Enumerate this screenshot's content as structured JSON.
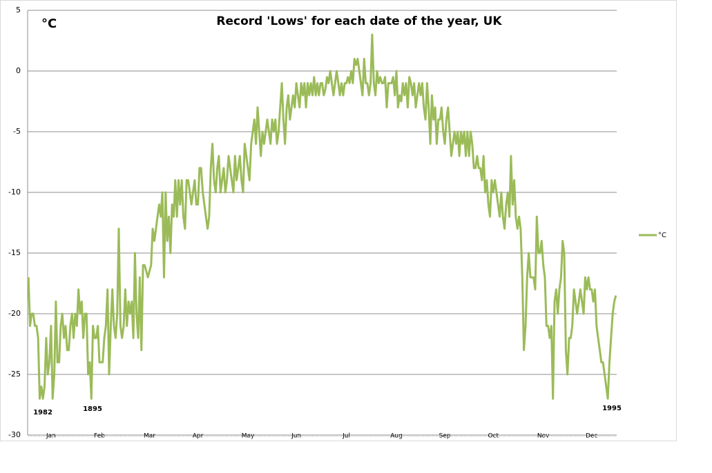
{
  "chart_data": {
    "type": "line",
    "title": "Record 'Lows' for each date of the year, UK",
    "unit_label": "°C",
    "annotations": [
      "1982",
      "1895",
      "1995"
    ],
    "ylim": [
      -30,
      5
    ],
    "yticks": [
      5,
      0,
      -5,
      -10,
      -15,
      -20,
      -25,
      -30
    ],
    "grid": true,
    "legend": "right",
    "categories": [
      null,
      null,
      null,
      null,
      null,
      null,
      null,
      null,
      null,
      null,
      null,
      null,
      null,
      null,
      "Jan",
      null,
      null,
      null,
      null,
      null,
      null,
      null,
      null,
      null,
      null,
      null,
      null,
      null,
      null,
      null,
      null,
      null,
      null,
      null,
      null,
      null,
      null,
      null,
      null,
      null,
      null,
      null,
      null,
      null,
      "Feb",
      null,
      null,
      null,
      null,
      null,
      null,
      null,
      null,
      null,
      null,
      null,
      null,
      null,
      null,
      null,
      null,
      null,
      null,
      null,
      null,
      null,
      null,
      null,
      null,
      null,
      null,
      null,
      null,
      null,
      null,
      "Mar",
      null,
      null,
      null,
      null,
      null,
      null,
      null,
      null,
      null,
      null,
      null,
      null,
      null,
      null,
      null,
      null,
      null,
      null,
      null,
      null,
      null,
      null,
      null,
      null,
      null,
      null,
      null,
      null,
      null,
      "Apr",
      null,
      null,
      null,
      null,
      null,
      null,
      null,
      null,
      null,
      null,
      null,
      null,
      null,
      null,
      null,
      null,
      null,
      null,
      null,
      null,
      null,
      null,
      null,
      null,
      null,
      null,
      null,
      null,
      null,
      null,
      "May",
      null,
      null,
      null,
      null,
      null,
      null,
      null,
      null,
      null,
      null,
      null,
      null,
      null,
      null,
      null,
      null,
      null,
      null,
      null,
      null,
      null,
      null,
      null,
      null,
      null,
      null,
      null,
      null,
      null,
      "Jun",
      null,
      null,
      null,
      null,
      null,
      null,
      null,
      null,
      null,
      null,
      null,
      null,
      null,
      null,
      null,
      null,
      null,
      null,
      null,
      null,
      null,
      null,
      null,
      null,
      null,
      null,
      null,
      null,
      null,
      null,
      "Jul",
      null,
      null,
      null,
      null,
      null,
      null,
      null,
      null,
      null,
      null,
      null,
      null,
      null,
      null,
      null,
      null,
      null,
      null,
      null,
      null,
      null,
      null,
      null,
      null,
      null,
      null,
      null,
      null,
      null,
      null,
      "Aug",
      null,
      null,
      null,
      null,
      null,
      null,
      null,
      null,
      null,
      null,
      null,
      null,
      null,
      null,
      null,
      null,
      null,
      null,
      null,
      null,
      null,
      null,
      null,
      null,
      null,
      null,
      null,
      null,
      null,
      "Sep",
      null,
      null,
      null,
      null,
      null,
      null,
      null,
      null,
      null,
      null,
      null,
      null,
      null,
      null,
      null,
      null,
      null,
      null,
      null,
      null,
      null,
      null,
      null,
      null,
      null,
      null,
      null,
      null,
      null,
      "Oct",
      null,
      null,
      null,
      null,
      null,
      null,
      null,
      null,
      null,
      null,
      null,
      null,
      null,
      null,
      null,
      null,
      null,
      null,
      null,
      null,
      null,
      null,
      null,
      null,
      null,
      null,
      null,
      null,
      null,
      null,
      "Nov",
      null,
      null,
      null,
      null,
      null,
      null,
      null,
      null,
      null,
      null,
      null,
      null,
      null,
      null,
      null,
      null,
      null,
      null,
      null,
      null,
      null,
      null,
      null,
      null,
      null,
      null,
      null,
      null,
      null,
      "Dec",
      null,
      null,
      null,
      null,
      null,
      null,
      null,
      null,
      null,
      null,
      null,
      null,
      null,
      null,
      null
    ],
    "series": [
      {
        "name": "°C",
        "color": "#9bbb59",
        "values": [
          -17,
          -21,
          -20,
          -20,
          -21,
          -21,
          -22,
          -27,
          -26,
          -27,
          -26,
          -22,
          -25,
          -24,
          -21,
          -27,
          -25,
          -19,
          -24,
          -24,
          -21,
          -20,
          -22,
          -21,
          -23,
          -23,
          -21,
          -20,
          -22,
          -20,
          -21,
          -18,
          -20,
          -19,
          -22,
          -20,
          -20,
          -25,
          -24,
          -27,
          -21,
          -22,
          -22,
          -21,
          -24,
          -24,
          -24,
          -22,
          -21,
          -18,
          -25,
          -21,
          -18,
          -21,
          -22,
          -20,
          -13,
          -21,
          -22,
          -21,
          -18,
          -21,
          -19,
          -20,
          -19,
          -22,
          -15,
          -20,
          -22,
          -17,
          -23,
          -16,
          -16,
          -16.5,
          -17,
          -16.5,
          -16,
          -13,
          -14,
          -13,
          -12,
          -11,
          -12,
          -10,
          -17,
          -10,
          -14,
          -12,
          -15,
          -11,
          -12,
          -9,
          -12,
          -9,
          -11,
          -9,
          -12,
          -13,
          -9,
          -9,
          -10,
          -11,
          -10,
          -9,
          -11,
          -11,
          -8,
          -8,
          -10,
          -11,
          -12,
          -13,
          -12,
          -8,
          -6,
          -9,
          -10,
          -8,
          -7,
          -10,
          -9,
          -8,
          -10,
          -9,
          -7,
          -8,
          -9,
          -10,
          -7,
          -9,
          -8,
          -7,
          -9,
          -10,
          -6,
          -7,
          -8,
          -9,
          -6,
          -5,
          -4,
          -6,
          -3,
          -5,
          -7,
          -5,
          -6,
          -5,
          -4,
          -5,
          -6,
          -4,
          -5,
          -4,
          -6,
          -5,
          -3,
          -1,
          -4,
          -6,
          -3,
          -2,
          -4,
          -3,
          -2,
          -3,
          -1,
          -2,
          -3,
          -1,
          -2,
          -1,
          -3,
          -1,
          -2,
          -1,
          -2,
          -0.5,
          -2,
          -1,
          -2,
          -1,
          -1,
          -2,
          -1.5,
          -0.5,
          -1,
          0,
          -1,
          -2,
          -1,
          0,
          -1,
          -2,
          -1,
          -2,
          -1,
          -1,
          -0.5,
          -1,
          0,
          -1,
          1,
          0.5,
          1,
          0,
          -1,
          -2,
          1,
          -1,
          -1,
          -2,
          -1,
          3,
          -1,
          -2,
          0,
          -1,
          -0.5,
          -1,
          -1,
          -0.5,
          -3,
          -1,
          -1,
          -1,
          -0.5,
          -2,
          0,
          -3,
          -2,
          -2.5,
          -1,
          -2,
          -1,
          -3,
          -0.5,
          -1,
          -2,
          -1,
          -3,
          -2,
          -1,
          -2,
          -1,
          -3,
          -4,
          -1,
          -3,
          -6,
          -2,
          -4,
          -3,
          -6,
          -4,
          -4,
          -3,
          -5,
          -6,
          -4,
          -3,
          -5,
          -7,
          -6,
          -5,
          -6,
          -5,
          -7,
          -5,
          -6,
          -5,
          -7,
          -5,
          -7,
          -5,
          -6,
          -8,
          -8,
          -7,
          -8,
          -8,
          -9,
          -7,
          -10,
          -9,
          -11,
          -12,
          -9,
          -10,
          -9,
          -10,
          -11,
          -12,
          -10,
          -12,
          -13,
          -11,
          -10,
          -12,
          -7,
          -11,
          -9,
          -12,
          -13,
          -12,
          -13,
          -17,
          -23,
          -21,
          -17,
          -15,
          -17,
          -17,
          -17,
          -18,
          -12,
          -15,
          -15,
          -14,
          -16,
          -17,
          -21,
          -21,
          -22,
          -21,
          -27,
          -19,
          -18,
          -20,
          -18,
          -17,
          -14,
          -15,
          -23,
          -25,
          -22,
          -22,
          -21,
          -18,
          -19,
          -20,
          -19,
          -18,
          -19,
          -20,
          -17,
          -18,
          -17,
          -18,
          -18,
          -19,
          -18,
          -21,
          -22,
          -23,
          -24,
          -24,
          -25,
          -26,
          -27,
          -24,
          -22,
          -20,
          -19,
          -18.5
        ]
      }
    ]
  }
}
